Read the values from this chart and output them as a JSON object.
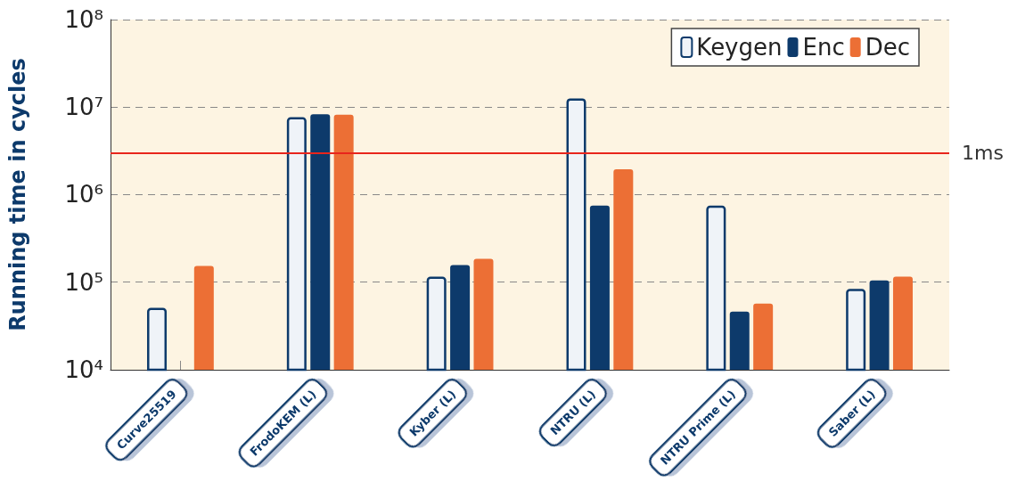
{
  "chart_data": {
    "type": "bar",
    "ylabel": "Running time in cycles",
    "categories": [
      "Curve25519",
      "FrodoKEM (L)",
      "Kyber (L)",
      "NTRU (L)",
      "NTRU Prime (L)",
      "Saber (L)"
    ],
    "series": [
      {
        "name": "Keygen",
        "color": "#eff3f8",
        "values": [
          51000,
          7700000,
          116000,
          12600000,
          750000,
          84000
        ]
      },
      {
        "name": "Enc",
        "color": "#0d3a6b",
        "values": [
          null,
          8300000,
          157000,
          750000,
          46000,
          105000
        ]
      },
      {
        "name": "Dec",
        "color": "#ec6f35",
        "values": [
          153000,
          8200000,
          185000,
          1950000,
          57000,
          116000
        ]
      }
    ],
    "log": "y",
    "ylim": [
      10000,
      100000000
    ],
    "yticks": [
      {
        "value": 10000,
        "label": "10⁴"
      },
      {
        "value": 100000,
        "label": "10⁵"
      },
      {
        "value": 1000000,
        "label": "10⁶"
      },
      {
        "value": 10000000,
        "label": "10⁷"
      },
      {
        "value": 100000000,
        "label": "10⁸"
      }
    ],
    "grid": "y",
    "legend": "top right",
    "ref_lines": [
      {
        "axis": "y",
        "value": 3000000,
        "label": "1ms",
        "color": "#e8251c",
        "line_style": "solid"
      }
    ]
  }
}
